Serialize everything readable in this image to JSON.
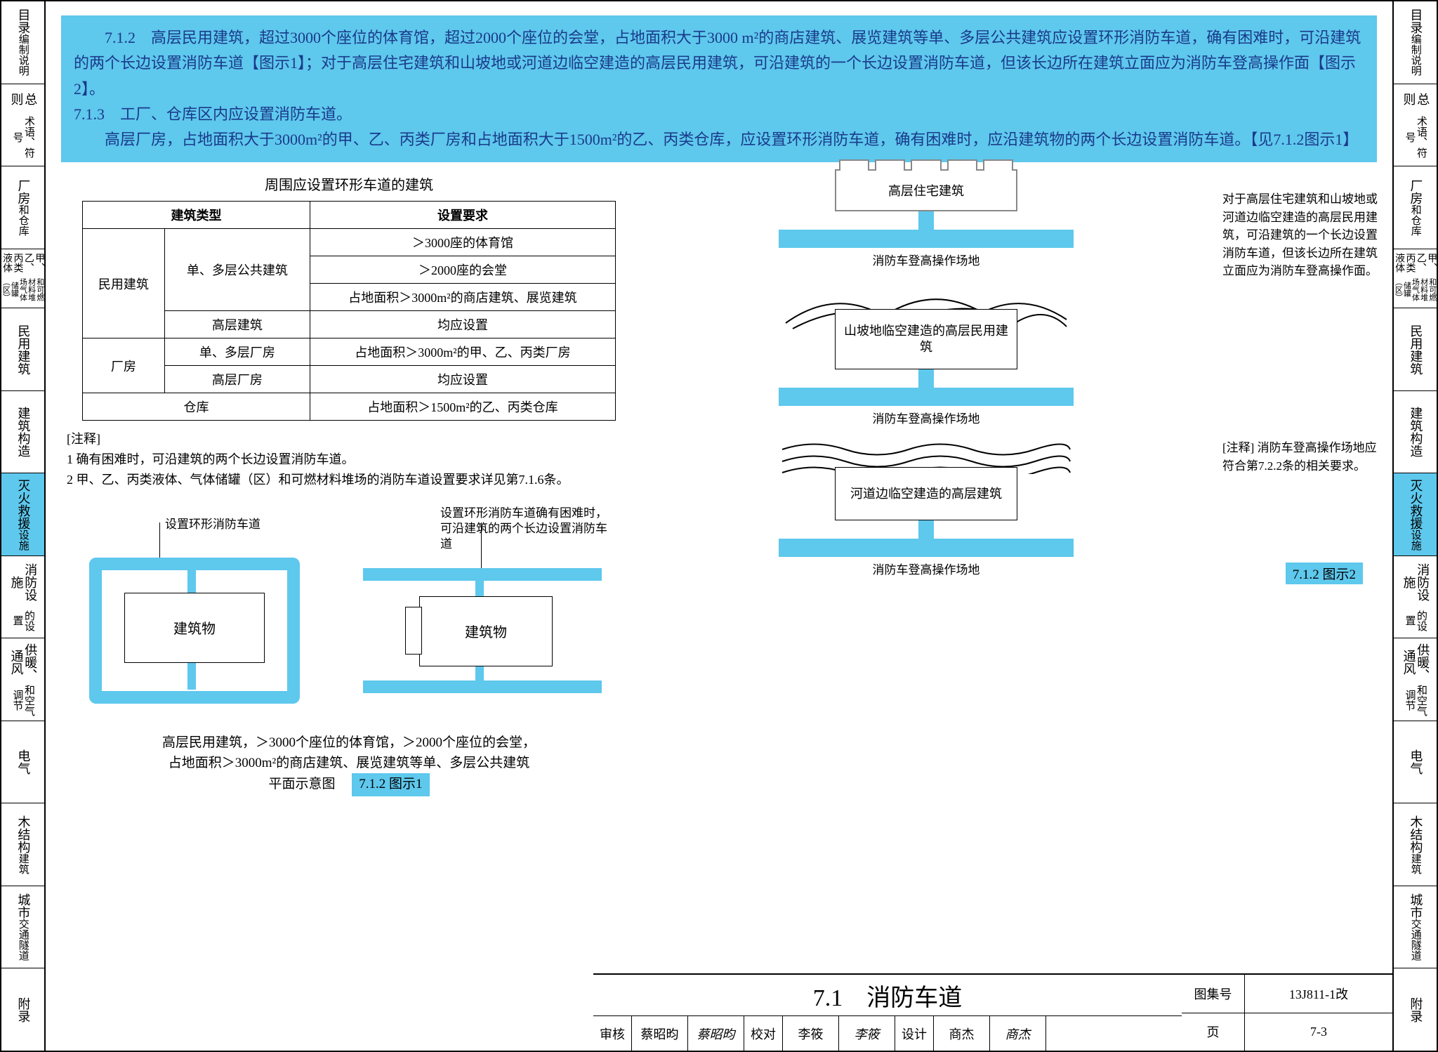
{
  "colors": {
    "highlight": "#5ec8ed",
    "text_blue": "#1a3a8a",
    "border": "#000000",
    "bg": "#ffffff",
    "grey": "#888888"
  },
  "nav_items": [
    {
      "l1": "目录",
      "l2": "编制说明",
      "hl": false
    },
    {
      "l1": "总则",
      "l2": "术语、符号",
      "hl": false
    },
    {
      "l1": "厂房",
      "l2": "和仓库",
      "hl": false
    },
    {
      "l1": "甲、乙、丙类液体",
      "l2": "和可燃材料堆场气体储罐（区）",
      "hl": false,
      "small": true
    },
    {
      "l1": "民用建筑",
      "l2": "",
      "hl": false
    },
    {
      "l1": "建筑构造",
      "l2": "",
      "hl": false
    },
    {
      "l1": "灭火救援",
      "l2": "设施",
      "hl": true
    },
    {
      "l1": "消防设施",
      "l2": "的设置",
      "hl": false
    },
    {
      "l1": "供暖、通风",
      "l2": "和空气调节",
      "hl": false
    },
    {
      "l1": "电气",
      "l2": "",
      "hl": false
    },
    {
      "l1": "木结构",
      "l2": "建筑",
      "hl": false
    },
    {
      "l1": "城市",
      "l2": "交通隧道",
      "hl": false
    },
    {
      "l1": "附录",
      "l2": "",
      "hl": false
    }
  ],
  "para": {
    "p1": "7.1.2　高层民用建筑，超过3000个座位的体育馆，超过2000个座位的会堂，占地面积大于3000 m²的商店建筑、展览建筑等单、多层公共建筑应设置环形消防车道，确有困难时，可沿建筑的两个长边设置消防车道【图示1】；对于高层住宅建筑和山坡地或河道边临空建造的高层民用建筑，可沿建筑的一个长边设置消防车道，但该长边所在建筑立面应为消防车登高操作面【图示2】。",
    "p2": "7.1.3　工厂、仓库区内应设置消防车道。",
    "p3": "高层厂房，占地面积大于3000m²的甲、乙、丙类厂房和占地面积大于1500m²的乙、丙类仓库，应设置环形消防车道，确有困难时，应沿建筑物的两个长边设置消防车道。【见7.1.2图示1】"
  },
  "table": {
    "title": "周围应设置环形车道的建筑",
    "h1": "建筑类型",
    "h2": "设置要求",
    "rows": [
      {
        "c1": "民用建筑",
        "c2": "单、多层公共建筑",
        "c3": "＞3000座的体育馆",
        "rs1": 4,
        "rs2": 3
      },
      {
        "c3": "＞2000座的会堂"
      },
      {
        "c3": "占地面积＞3000m²的商店建筑、展览建筑"
      },
      {
        "c2": "高层建筑",
        "c3": "均应设置"
      },
      {
        "c1": "厂房",
        "c2": "单、多层厂房",
        "c3": "占地面积＞3000m²的甲、乙、丙类厂房",
        "rs1": 2
      },
      {
        "c2": "高层厂房",
        "c3": "均应设置"
      },
      {
        "c1": "仓库",
        "c3": "占地面积＞1500m²的乙、丙类仓库",
        "cs1": 2
      }
    ]
  },
  "notes": {
    "title": "[注释]",
    "n1": "1 确有困难时，可沿建筑的两个长边设置消防车道。",
    "n2": "2 甲、乙、丙类液体、气体储罐（区）和可燃材料堆场的消防车道设置要求详见第7.1.6条。"
  },
  "diag1": {
    "lbl_ring": "设置环形消防车道",
    "lbl_two": "设置环形消防车道确有困难时，可沿建筑的两个长边设置消防车道",
    "bld": "建筑物",
    "cap1": "高层民用建筑，＞3000个座位的体育馆，＞2000个座位的会堂，",
    "cap2": "占地面积＞3000m²的商店建筑、展览建筑等单、多层公共建筑",
    "cap3": "平面示意图",
    "tag": "7.1.2 图示1"
  },
  "diag2": {
    "t1": "高层住宅建筑",
    "t2": "山坡地临空建造的高层民用建筑",
    "t3": "河道边临空建造的高层建筑",
    "under": "消防车登高操作场地",
    "side1": "对于高层住宅建筑和山坡地或河道边临空建造的高层民用建筑，可沿建筑的一个长边设置消防车道，但该长边所在建筑立面应为消防车登高操作面。",
    "side2": "[注释] 消防车登高操作场地应符合第7.2.2条的相关要求。",
    "tag": "7.1.2 图示2"
  },
  "titleblock": {
    "section": "7.1　消防车道",
    "atlas_lbl": "图集号",
    "atlas": "13J811-1改",
    "page_lbl": "页",
    "page": "7-3",
    "sig": [
      {
        "k": "审核",
        "v": "蔡昭昀"
      },
      {
        "sig": "蔡昭昀"
      },
      {
        "k": "校对",
        "v": "李筱"
      },
      {
        "sig": "李筱"
      },
      {
        "k": "设计",
        "v": "商杰"
      },
      {
        "sig": "商杰"
      }
    ]
  }
}
